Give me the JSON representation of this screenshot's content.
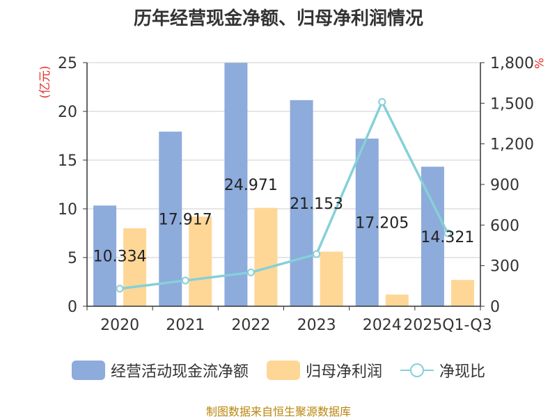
{
  "chart_data": {
    "type": "bar",
    "title": "历年经营现金净额、归母净利润情况",
    "categories": [
      "2020",
      "2021",
      "2022",
      "2023",
      "2024",
      "2025Q1-Q3"
    ],
    "series": [
      {
        "name": "经营活动现金流净额",
        "type": "bar",
        "axis": "left",
        "color": "#8dabdb",
        "values": [
          10.334,
          17.917,
          24.971,
          21.153,
          17.205,
          14.321
        ],
        "labels": [
          "10.334",
          "17.917",
          "24.971",
          "21.153",
          "17.205",
          "14.321"
        ]
      },
      {
        "name": "归母净利润",
        "type": "bar",
        "axis": "left",
        "color": "#fed797",
        "values": [
          8.0,
          9.2,
          10.1,
          5.6,
          1.2,
          2.7
        ]
      },
      {
        "name": "净现比",
        "type": "line",
        "axis": "right",
        "color": "#86d0d8",
        "values": [
          130,
          190,
          250,
          385,
          1510,
          540
        ]
      }
    ],
    "y_left": {
      "label": "(亿元)",
      "ylim": [
        0,
        25
      ],
      "ticks": [
        "0",
        "5",
        "10",
        "15",
        "20",
        "25"
      ]
    },
    "y_right": {
      "label": "%",
      "ylim": [
        0,
        1800
      ],
      "ticks": [
        "0",
        "300",
        "600",
        "900",
        "1,200",
        "1,500",
        "1,800"
      ]
    },
    "grid": true,
    "legend_position": "bottom"
  },
  "legend": {
    "item1": "经营活动现金流净额",
    "item2": "归母净利润",
    "item3": "净现比"
  },
  "colors": {
    "bar1": "#8dabdb",
    "bar2": "#fed797",
    "line": "#86d0d8",
    "axis_label": "#e8302a"
  },
  "source": "制图数据来自恒生聚源数据库"
}
